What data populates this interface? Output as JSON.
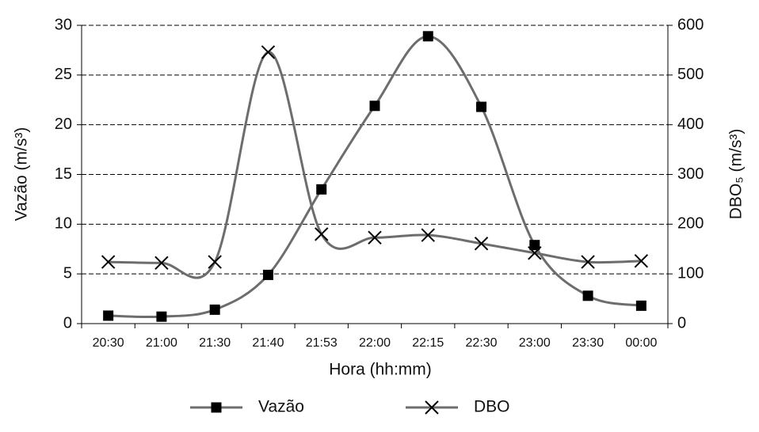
{
  "chart_data": {
    "type": "line",
    "x_label": "Hora (hh:mm)",
    "y_label": "Vazão (m/s³)",
    "y2_label": "DBO₅ (m/s³)",
    "categories": [
      "20:30",
      "21:00",
      "21:30",
      "21:40",
      "21:53",
      "22:00",
      "22:15",
      "22:30",
      "23:00",
      "23:30",
      "00:00"
    ],
    "series": [
      {
        "name": "Vazão",
        "color": "#6d6d6d",
        "marker": "square",
        "values": [
          0.8,
          0.7,
          1.4,
          4.9,
          13.5,
          21.9,
          28.9,
          21.8,
          7.9,
          2.8,
          1.8
        ]
      },
      {
        "name": "DBO",
        "color": "#6d6d6d",
        "marker": "x",
        "axis": "y2",
        "values": [
          124,
          122,
          124,
          546,
          180,
          173,
          178,
          161,
          142,
          124,
          126
        ]
      }
    ],
    "ylim": [
      0,
      30
    ],
    "yticks": [
      0,
      5,
      10,
      15,
      20,
      25,
      30
    ],
    "y2lim": [
      0,
      600
    ],
    "y2ticks": [
      0,
      100,
      200,
      300,
      400,
      500,
      600
    ],
    "grid": true,
    "legend": "bottom",
    "smooth": true
  }
}
